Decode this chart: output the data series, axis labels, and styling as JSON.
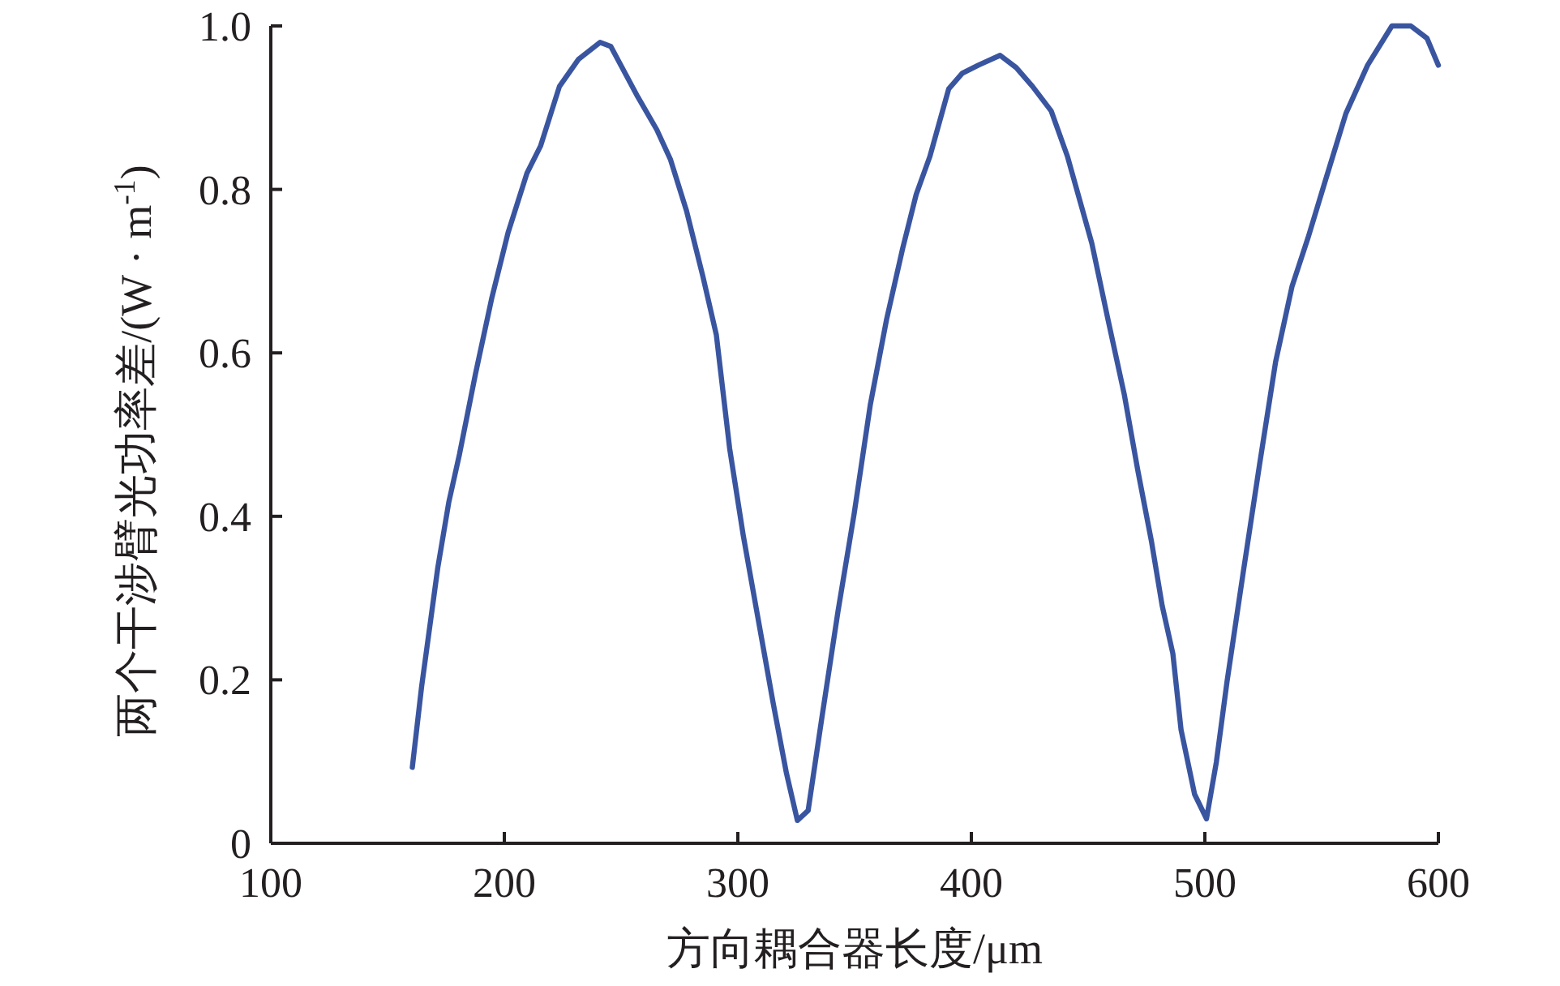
{
  "chart_data": {
    "type": "line",
    "xlabel": "方向耦合器长度/μm",
    "ylabel": "两个干涉臂光功率差/(W · m$^{-1}$)",
    "xlim": [
      100,
      600
    ],
    "ylim": [
      0,
      1
    ],
    "xticks": [
      100,
      200,
      300,
      400,
      500,
      600
    ],
    "yticks": [
      0,
      0.2,
      0.4,
      0.6,
      0.8,
      {
        "value": 1,
        "label": "1.0"
      }
    ],
    "grid": false,
    "series": [
      {
        "color": "#3a55a0",
        "x": [
          160.6,
          164.6,
          171.5,
          176.2,
          180.8,
          187.7,
          194.7,
          201.6,
          209.7,
          215.5,
          223.6,
          231.7,
          241,
          245.6,
          257.2,
          265.3,
          271.1,
          278,
          285,
          290.8,
          296.5,
          302.3,
          308.1,
          315.1,
          320.8,
          325.5,
          330.1,
          335.9,
          342.9,
          349.8,
          356.7,
          363.7,
          370.6,
          376.4,
          382.2,
          390.3,
          396.1,
          403,
          412.3,
          419.2,
          426.2,
          434.2,
          441.2,
          451.6,
          458.5,
          465.5,
          471.3,
          477.1,
          481.7,
          486.3,
          489.8,
          495.6,
          500.7,
          504.9,
          509.5,
          516.4,
          523.4,
          530.3,
          537.3,
          544.2,
          551.2,
          560.4,
          569.7,
          580.1,
          588.2,
          595.1,
          600
        ],
        "values": [
          0.093,
          0.192,
          0.337,
          0.417,
          0.476,
          0.575,
          0.668,
          0.747,
          0.82,
          0.853,
          0.926,
          0.959,
          0.98,
          0.975,
          0.913,
          0.873,
          0.837,
          0.774,
          0.694,
          0.622,
          0.483,
          0.377,
          0.284,
          0.172,
          0.086,
          0.028,
          0.04,
          0.152,
          0.284,
          0.403,
          0.536,
          0.641,
          0.728,
          0.794,
          0.84,
          0.923,
          0.942,
          0.952,
          0.964,
          0.949,
          0.926,
          0.896,
          0.84,
          0.734,
          0.641,
          0.549,
          0.456,
          0.37,
          0.291,
          0.232,
          0.139,
          0.06,
          0.03,
          0.099,
          0.198,
          0.331,
          0.463,
          0.589,
          0.681,
          0.741,
          0.807,
          0.893,
          0.952,
          1.0,
          1.0,
          0.985,
          0.952
        ]
      }
    ]
  }
}
